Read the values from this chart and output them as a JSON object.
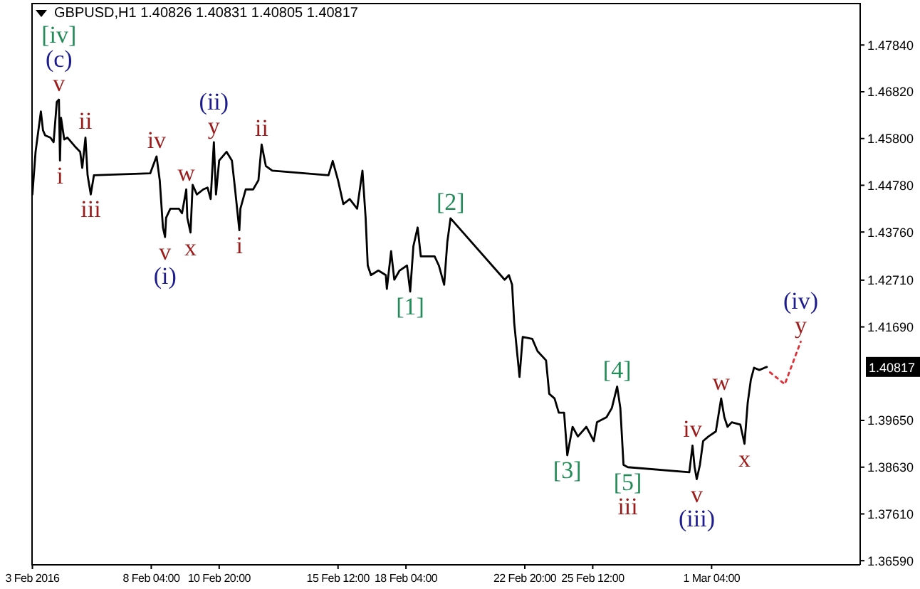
{
  "chart_data": {
    "type": "line",
    "title": "GBPUSD,H1 1.40826 1.40831 1.40805 1.40817",
    "xlim": [
      "2016-02-03T11:00",
      "2016-03-07T00:00"
    ],
    "xticks": [
      {
        "value": "2016-02-03T12:00",
        "label": "3 Feb 2016"
      },
      {
        "value": "2016-02-08T04:00",
        "label": "8 Feb 04:00"
      },
      {
        "value": "2016-02-10T20:00",
        "label": "10 Feb 20:00"
      },
      {
        "value": "2016-02-15T12:00",
        "label": "15 Feb 12:00"
      },
      {
        "value": "2016-02-18T04:00",
        "label": "18 Feb 04:00"
      },
      {
        "value": "2016-02-22T20:00",
        "label": "22 Feb 20:00"
      },
      {
        "value": "2016-02-25T12:00",
        "label": "25 Feb 12:00"
      },
      {
        "value": "2016-03-01T04:00",
        "label": "1 Mar 04:00"
      }
    ],
    "ylim": [
      1.365,
      1.4876
    ],
    "yticks": [
      {
        "value": 1.4784,
        "label": "1.47840"
      },
      {
        "value": 1.4682,
        "label": "1.46820"
      },
      {
        "value": 1.458,
        "label": "1.45800"
      },
      {
        "value": 1.4478,
        "label": "1.44780"
      },
      {
        "value": 1.4376,
        "label": "1.43760"
      },
      {
        "value": 1.4271,
        "label": "1.42710"
      },
      {
        "value": 1.4169,
        "label": "1.41690"
      },
      {
        "value": 1.3965,
        "label": "1.39650"
      },
      {
        "value": 1.3863,
        "label": "1.38630"
      },
      {
        "value": 1.3761,
        "label": "1.37610"
      },
      {
        "value": 1.3659,
        "label": "1.36590"
      }
    ],
    "series": [
      {
        "color": "#000000",
        "x": [
          "2016-02-03T12:00",
          "2016-02-03T15:00",
          "2016-02-03T20:00",
          "2016-02-03T22:00",
          "2016-02-04T00:00",
          "2016-02-04T05:00",
          "2016-02-04T08:00",
          "2016-02-04T11:00",
          "2016-02-04T13:00",
          "2016-02-04T14:00",
          "2016-02-04T15:00",
          "2016-02-04T18:00",
          "2016-02-04T21:00",
          "2016-02-05T04:00",
          "2016-02-05T09:00",
          "2016-02-05T11:00",
          "2016-02-05T14:00",
          "2016-02-05T16:00",
          "2016-02-05T19:00",
          "2016-02-05T22:00",
          "2016-02-08T03:00",
          "2016-02-08T09:00",
          "2016-02-08T12:00",
          "2016-02-08T15:00",
          "2016-02-08T17:00",
          "2016-02-08T18:00",
          "2016-02-08T22:00",
          "2016-02-09T06:00",
          "2016-02-09T09:00",
          "2016-02-09T13:00",
          "2016-02-09T14:00",
          "2016-02-09T17:00",
          "2016-02-09T19:00",
          "2016-02-09T23:00",
          "2016-02-10T05:00",
          "2016-02-10T09:00",
          "2016-02-10T12:00",
          "2016-02-10T15:00",
          "2016-02-10T17:00",
          "2016-02-10T20:00",
          "2016-02-11T03:00",
          "2016-02-11T08:00",
          "2016-02-11T11:00",
          "2016-02-11T15:00",
          "2016-02-11T16:00",
          "2016-02-11T21:00",
          "2016-02-12T04:00",
          "2016-02-12T09:00",
          "2016-02-12T12:00",
          "2016-02-12T16:00",
          "2016-02-12T22:00",
          "2016-02-15T03:00",
          "2016-02-15T07:00",
          "2016-02-15T12:00",
          "2016-02-15T17:00",
          "2016-02-15T23:00",
          "2016-02-16T06:00",
          "2016-02-16T11:00",
          "2016-02-16T14:00",
          "2016-02-16T16:00",
          "2016-02-16T19:00",
          "2016-02-17T02:00",
          "2016-02-17T09:00",
          "2016-02-17T10:00",
          "2016-02-17T14:00",
          "2016-02-17T17:00",
          "2016-02-17T22:00",
          "2016-02-18T05:00",
          "2016-02-18T08:00",
          "2016-02-18T11:00",
          "2016-02-18T15:00",
          "2016-02-18T18:00",
          "2016-02-19T07:00",
          "2016-02-19T11:00",
          "2016-02-19T16:00",
          "2016-02-19T19:00",
          "2016-02-19T22:00",
          "2016-02-22T01:00",
          "2016-02-22T05:00",
          "2016-02-22T08:00",
          "2016-02-22T10:00",
          "2016-02-22T15:00",
          "2016-02-22T18:00",
          "2016-02-23T03:00",
          "2016-02-23T08:00",
          "2016-02-23T16:00",
          "2016-02-23T19:00",
          "2016-02-24T00:00",
          "2016-02-24T04:00",
          "2016-02-24T09:00",
          "2016-02-24T12:00",
          "2016-02-24T17:00",
          "2016-02-24T22:00",
          "2016-02-25T06:00",
          "2016-02-25T13:00",
          "2016-02-25T16:00",
          "2016-02-26T01:00",
          "2016-02-26T06:00",
          "2016-02-26T11:00",
          "2016-02-26T14:00",
          "2016-02-26T17:00",
          "2016-02-26T21:00",
          "2016-02-29T07:00",
          "2016-02-29T10:00",
          "2016-02-29T12:00",
          "2016-02-29T14:00",
          "2016-02-29T17:00",
          "2016-02-29T20:00",
          "2016-03-01T01:00",
          "2016-03-01T08:00",
          "2016-03-01T13:00",
          "2016-03-01T16:00",
          "2016-03-01T19:00",
          "2016-03-01T23:00",
          "2016-03-02T07:00",
          "2016-03-02T11:00",
          "2016-03-02T14:00",
          "2016-03-02T17:00",
          "2016-03-02T20:00",
          "2016-03-03T01:00",
          "2016-03-03T06:00",
          "2016-03-03T08:00"
        ],
        "values": [
          1.4458,
          1.4551,
          1.4639,
          1.4598,
          1.4587,
          1.4582,
          1.4572,
          1.466,
          1.4665,
          1.4532,
          1.4625,
          1.4578,
          1.4582,
          1.4563,
          1.4551,
          1.4516,
          1.4582,
          1.45,
          1.4458,
          1.45,
          1.4504,
          1.4541,
          1.4489,
          1.4386,
          1.4365,
          1.4407,
          1.4427,
          1.4427,
          1.4417,
          1.4469,
          1.4407,
          1.4375,
          1.4479,
          1.4458,
          1.4469,
          1.4473,
          1.4448,
          1.4572,
          1.4458,
          1.4532,
          1.4551,
          1.4532,
          1.4469,
          1.438,
          1.4427,
          1.4469,
          1.4469,
          1.4489,
          1.4567,
          1.452,
          1.451,
          1.45,
          1.4531,
          1.4489,
          1.4437,
          1.4448,
          1.4427,
          1.451,
          1.4407,
          1.4303,
          1.4282,
          1.4292,
          1.4282,
          1.4252,
          1.4334,
          1.4272,
          1.4292,
          1.4303,
          1.4246,
          1.4345,
          1.4386,
          1.4323,
          1.4323,
          1.4303,
          1.4261,
          1.4355,
          1.4406,
          1.4272,
          1.4282,
          1.4261,
          1.4178,
          1.406,
          1.4147,
          1.4143,
          1.4116,
          1.4096,
          1.4023,
          1.4013,
          1.3982,
          1.3982,
          1.3889,
          1.3951,
          1.393,
          1.3951,
          1.392,
          1.3961,
          1.3972,
          1.3992,
          1.4039,
          1.3992,
          1.3868,
          1.3863,
          1.3852,
          1.391,
          1.3863,
          1.3837,
          1.3868,
          1.392,
          1.393,
          1.3941,
          1.4013,
          1.3972,
          1.3951,
          1.3961,
          1.3956,
          1.3914,
          1.4003,
          1.4054,
          1.408,
          1.4075,
          1.408,
          1.40817
        ]
      },
      {
        "color": "#e0303a",
        "line_style": "dotted",
        "x": [
          "2016-03-03T11:00",
          "2016-03-04T01:00",
          "2016-03-04T16:00"
        ],
        "values": [
          1.407,
          1.4044,
          1.4137
        ]
      }
    ],
    "annotations": [
      {
        "text": "v",
        "x": "2016-02-04T13:00",
        "y": 1.4665
      },
      {
        "text": "(c)",
        "x": "2016-02-04T13:00",
        "y": 1.4665
      },
      {
        "text": "[iv]",
        "x": "2016-02-04T13:00",
        "y": 1.4665
      },
      {
        "text": "i",
        "x": "2016-02-04T14:00",
        "y": 1.4532
      },
      {
        "text": "ii",
        "x": "2016-02-05T14:00",
        "y": 1.4582
      },
      {
        "text": "iii",
        "x": "2016-02-05T19:00",
        "y": 1.4458
      },
      {
        "text": "iv",
        "x": "2016-02-08T09:00",
        "y": 1.4541
      },
      {
        "text": "v",
        "x": "2016-02-08T17:00",
        "y": 1.4365
      },
      {
        "text": "(i)",
        "x": "2016-02-08T17:00",
        "y": 1.4365
      },
      {
        "text": "w",
        "x": "2016-02-09T13:00",
        "y": 1.4469
      },
      {
        "text": "x",
        "x": "2016-02-09T17:00",
        "y": 1.4375
      },
      {
        "text": "y",
        "x": "2016-02-10T15:00",
        "y": 1.4572
      },
      {
        "text": "(ii)",
        "x": "2016-02-10T15:00",
        "y": 1.4572
      },
      {
        "text": "i",
        "x": "2016-02-11T15:00",
        "y": 1.438
      },
      {
        "text": "ii",
        "x": "2016-02-12T12:00",
        "y": 1.4567
      },
      {
        "text": "[1]",
        "x": "2016-02-18T08:00",
        "y": 1.4246
      },
      {
        "text": "[2]",
        "x": "2016-02-19T22:00",
        "y": 1.4406
      },
      {
        "text": "[3]",
        "x": "2016-02-24T12:00",
        "y": 1.3889
      },
      {
        "text": "[4]",
        "x": "2016-02-26T11:00",
        "y": 1.4039
      },
      {
        "text": "[5]",
        "x": "2016-02-26T21:00",
        "y": 1.3863
      },
      {
        "text": "iii",
        "x": "2016-02-26T21:00",
        "y": 1.3863
      },
      {
        "text": "iv",
        "x": "2016-02-29T10:00",
        "y": 1.391
      },
      {
        "text": "v",
        "x": "2016-02-29T14:00",
        "y": 1.3837
      },
      {
        "text": "(iii)",
        "x": "2016-02-29T14:00",
        "y": 1.3837
      },
      {
        "text": "w",
        "x": "2016-03-01T13:00",
        "y": 1.4013
      },
      {
        "text": "x",
        "x": "2016-03-02T11:00",
        "y": 1.3914
      },
      {
        "text": "y",
        "x": "2016-03-04T16:00",
        "y": 1.4137
      },
      {
        "text": "(iv)",
        "x": "2016-03-04T16:00",
        "y": 1.4137
      },
      "1.40817"
    ]
  }
}
